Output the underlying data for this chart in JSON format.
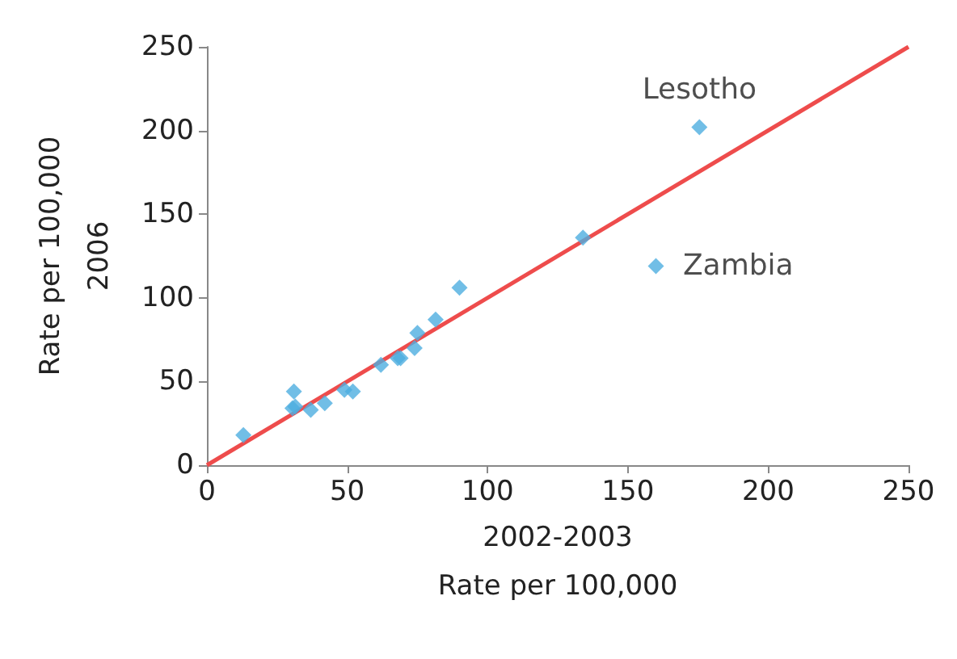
{
  "chart_data": {
    "type": "scatter",
    "xlabel": "2002-2003\nRate per 100,000",
    "ylabel": "Rate per 100,000\n2006",
    "xlim": [
      0,
      250
    ],
    "ylim": [
      0,
      250
    ],
    "xticks": [
      0,
      50,
      100,
      150,
      200,
      250
    ],
    "yticks": [
      0,
      50,
      100,
      150,
      200,
      250
    ],
    "grid": false,
    "marker": "diamond",
    "series": [
      {
        "color": "#4eaee0",
        "x": [
          13,
          31,
          31.5,
          30.5,
          37,
          42,
          49,
          52,
          62,
          68,
          69,
          74,
          75,
          81.5,
          90,
          134,
          175.5,
          160
        ],
        "values": [
          18,
          44,
          35,
          34,
          33,
          37,
          45,
          44,
          60,
          64,
          64,
          70,
          79,
          87,
          106,
          136,
          202,
          119
        ]
      },
      {
        "type": "line",
        "color": "#ee4c4c",
        "marker": "none",
        "x": [
          0,
          250
        ],
        "values": [
          0,
          250
        ]
      }
    ],
    "annotations": [
      {
        "text": "Lesotho",
        "x": 175.5,
        "y": 202
      },
      {
        "text": "Zambia",
        "x": 160.4,
        "y": 119
      }
    ]
  }
}
